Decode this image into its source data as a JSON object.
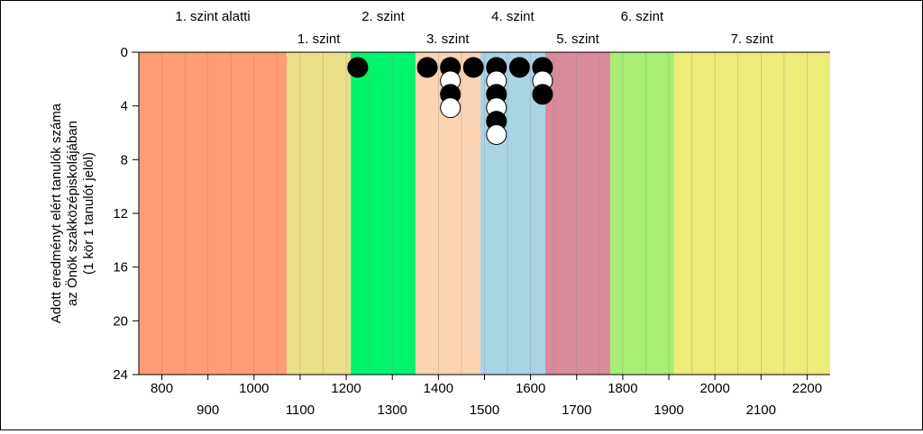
{
  "chart_data": {
    "type": "scatter",
    "title": "",
    "ylabel_lines": [
      "Adott eredményt elért tanulók száma",
      "az Önök szakközépiskolájában",
      "(1 kör 1 tanulót jelöl)"
    ],
    "xlim": [
      750,
      2250
    ],
    "ylim": [
      0,
      24
    ],
    "y_inverted": true,
    "y_ticks": [
      0,
      4,
      8,
      12,
      16,
      20,
      24
    ],
    "x_ticks_upper": [
      800,
      1000,
      1200,
      1400,
      1600,
      1800,
      2000,
      2200
    ],
    "x_ticks_lower": [
      900,
      1100,
      1300,
      1500,
      1700,
      1900,
      2100
    ],
    "grid": "vertical",
    "minor_grid_step": 50,
    "levels": [
      {
        "label": "1. szint alatti",
        "from": 750,
        "to": 1071,
        "color": "#ff9c73",
        "label_row": "top"
      },
      {
        "label": "1. szint",
        "from": 1071,
        "to": 1210,
        "color": "#ebe08a",
        "label_row": "bottom"
      },
      {
        "label": "2. szint",
        "from": 1210,
        "to": 1350,
        "color": "#00f56c",
        "label_row": "top"
      },
      {
        "label": "3. szint",
        "from": 1350,
        "to": 1491,
        "color": "#fdd4b1",
        "label_row": "bottom"
      },
      {
        "label": "4. szint",
        "from": 1491,
        "to": 1632,
        "color": "#a8d4e4",
        "label_row": "top"
      },
      {
        "label": "5. szint",
        "from": 1632,
        "to": 1773,
        "color": "#d98a9c",
        "label_row": "bottom"
      },
      {
        "label": "6. szint",
        "from": 1773,
        "to": 1911,
        "color": "#a6ef74",
        "label_row": "top"
      },
      {
        "label": "7. szint",
        "from": 1911,
        "to": 2250,
        "color": "#ecec78",
        "label_row": "bottom"
      }
    ],
    "students": [
      {
        "x": 1225,
        "y": 1,
        "fill": "black"
      },
      {
        "x": 1376,
        "y": 1,
        "fill": "black"
      },
      {
        "x": 1426,
        "y": 1,
        "fill": "black"
      },
      {
        "x": 1426,
        "y": 2,
        "fill": "white"
      },
      {
        "x": 1426,
        "y": 3,
        "fill": "black"
      },
      {
        "x": 1426,
        "y": 4,
        "fill": "white"
      },
      {
        "x": 1476,
        "y": 1,
        "fill": "black"
      },
      {
        "x": 1526,
        "y": 1,
        "fill": "black"
      },
      {
        "x": 1526,
        "y": 2,
        "fill": "white"
      },
      {
        "x": 1526,
        "y": 3,
        "fill": "black"
      },
      {
        "x": 1526,
        "y": 4,
        "fill": "white"
      },
      {
        "x": 1526,
        "y": 5,
        "fill": "black"
      },
      {
        "x": 1526,
        "y": 6,
        "fill": "white"
      },
      {
        "x": 1576,
        "y": 1,
        "fill": "black"
      },
      {
        "x": 1626,
        "y": 1,
        "fill": "black"
      },
      {
        "x": 1626,
        "y": 2,
        "fill": "white"
      },
      {
        "x": 1626,
        "y": 3,
        "fill": "black"
      }
    ]
  }
}
